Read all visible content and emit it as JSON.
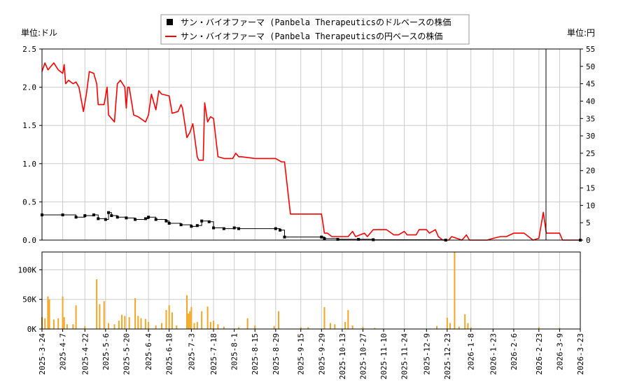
{
  "legend": {
    "usd_label": "サン・バイオファーマ (Panbela Therapeuticsのドルベースの株価",
    "jpy_label": "サン・バイオファーマ (Panbela Therapeuticsの円ベースの株価"
  },
  "axes": {
    "left_unit": "単位:ドル",
    "right_unit": "単位:円",
    "left_ticks": [
      "0.0",
      "0.5",
      "1.0",
      "1.5",
      "2.0",
      "2.5"
    ],
    "right_ticks": [
      "0",
      "5",
      "10",
      "15",
      "20",
      "25",
      "30",
      "35",
      "40",
      "45",
      "50",
      "55"
    ],
    "volume_ticks": [
      "0K",
      "50K",
      "100K"
    ],
    "x_ticks": [
      "2025-3-24",
      "2025-4-7",
      "2025-4-22",
      "2025-5-6",
      "2025-5-20",
      "2025-6-4",
      "2025-6-18",
      "2025-7-3",
      "2025-7-18",
      "2025-8-1",
      "2025-8-15",
      "2025-8-29",
      "2025-9-15",
      "2025-9-29",
      "2025-10-13",
      "2025-10-27",
      "2025-11-10",
      "2025-11-24",
      "2025-12-9",
      "2025-12-23",
      "2026-1-8",
      "2026-1-23",
      "2026-2-6",
      "2026-2-23",
      "2026-3-9",
      "2026-3-23"
    ]
  },
  "chart_data": {
    "type": "line",
    "colors": {
      "usd": "#000000",
      "jpy": "#ff0000",
      "volume": "#f5a623",
      "grid": "#cccccc"
    },
    "ylim_usd": [
      0,
      2.5
    ],
    "ylim_jpy": [
      0,
      55
    ],
    "ylim_volume": [
      0,
      130000
    ],
    "x_range": [
      "2025-03-24",
      "2026-03-23"
    ],
    "grid": true,
    "legend_position": "top-center",
    "series": [
      {
        "name": "サン・バイオファーマ (Panbela Therapeuticsの円ベースの株価",
        "axis": "right",
        "points": [
          [
            "2025-03-24",
            48.5
          ],
          [
            "2025-03-26",
            51
          ],
          [
            "2025-03-28",
            49
          ],
          [
            "2025-04-01",
            51
          ],
          [
            "2025-04-04",
            49
          ],
          [
            "2025-04-07",
            48
          ],
          [
            "2025-04-08",
            50.5
          ],
          [
            "2025-04-09",
            45
          ],
          [
            "2025-04-11",
            46
          ],
          [
            "2025-04-14",
            45
          ],
          [
            "2025-04-16",
            45.5
          ],
          [
            "2025-04-18",
            44
          ],
          [
            "2025-04-21",
            37
          ],
          [
            "2025-04-23",
            42
          ],
          [
            "2025-04-25",
            48.5
          ],
          [
            "2025-04-28",
            48
          ],
          [
            "2025-04-30",
            45
          ],
          [
            "2025-05-01",
            39
          ],
          [
            "2025-05-05",
            39
          ],
          [
            "2025-05-07",
            44
          ],
          [
            "2025-05-08",
            36
          ],
          [
            "2025-05-12",
            34
          ],
          [
            "2025-05-14",
            45
          ],
          [
            "2025-05-16",
            46
          ],
          [
            "2025-05-19",
            44
          ],
          [
            "2025-05-20",
            38
          ],
          [
            "2025-05-21",
            44
          ],
          [
            "2025-05-22",
            44
          ],
          [
            "2025-05-25",
            36
          ],
          [
            "2025-05-28",
            35.5
          ],
          [
            "2025-06-02",
            34
          ],
          [
            "2025-06-04",
            36
          ],
          [
            "2025-06-06",
            42
          ],
          [
            "2025-06-09",
            37.5
          ],
          [
            "2025-06-11",
            43
          ],
          [
            "2025-06-13",
            42
          ],
          [
            "2025-06-18",
            41.5
          ],
          [
            "2025-06-20",
            36.5
          ],
          [
            "2025-06-24",
            37
          ],
          [
            "2025-06-26",
            39
          ],
          [
            "2025-06-27",
            38
          ],
          [
            "2025-06-30",
            29.5
          ],
          [
            "2025-07-02",
            31
          ],
          [
            "2025-07-04",
            33.5
          ],
          [
            "2025-07-07",
            24
          ],
          [
            "2025-07-08",
            23
          ],
          [
            "2025-07-11",
            23
          ],
          [
            "2025-07-12",
            39.5
          ],
          [
            "2025-07-14",
            34
          ],
          [
            "2025-07-16",
            35.5
          ],
          [
            "2025-07-18",
            35
          ],
          [
            "2025-07-21",
            24
          ],
          [
            "2025-07-25",
            23.5
          ],
          [
            "2025-07-31",
            23.5
          ],
          [
            "2025-08-02",
            25
          ],
          [
            "2025-08-04",
            24
          ],
          [
            "2025-08-06",
            24
          ],
          [
            "2025-08-15",
            23.5
          ],
          [
            "2025-08-29",
            23.5
          ],
          [
            "2025-09-02",
            22.5
          ],
          [
            "2025-09-04",
            22.5
          ],
          [
            "2025-09-08",
            7.5
          ],
          [
            "2025-09-15",
            7.5
          ],
          [
            "2025-09-17",
            7.5
          ],
          [
            "2025-09-29",
            7.5
          ],
          [
            "2025-10-01",
            2
          ],
          [
            "2025-10-03",
            2
          ],
          [
            "2025-10-06",
            1
          ],
          [
            "2025-10-13",
            1
          ],
          [
            "2025-10-17",
            1
          ],
          [
            "2025-10-20",
            2.5
          ],
          [
            "2025-10-22",
            1
          ],
          [
            "2025-10-28",
            2
          ],
          [
            "2025-10-30",
            1
          ],
          [
            "2025-11-03",
            3
          ],
          [
            "2025-11-10",
            3
          ],
          [
            "2025-11-12",
            3
          ],
          [
            "2025-11-17",
            1.5
          ],
          [
            "2025-11-20",
            1.5
          ],
          [
            "2025-11-24",
            2.5
          ],
          [
            "2025-11-26",
            1.5
          ],
          [
            "2025-12-02",
            1.5
          ],
          [
            "2025-12-04",
            3
          ],
          [
            "2025-12-09",
            3
          ],
          [
            "2025-12-11",
            2
          ],
          [
            "2025-12-15",
            3
          ],
          [
            "2025-12-17",
            1
          ],
          [
            "2025-12-20",
            0
          ],
          [
            "2025-12-24",
            0
          ],
          [
            "2025-12-26",
            1
          ],
          [
            "2026-01-02",
            0
          ],
          [
            "2026-01-05",
            1.5
          ],
          [
            "2026-01-07",
            0
          ],
          [
            "2026-01-08",
            0
          ],
          [
            "2026-01-19",
            0
          ],
          [
            "2026-01-23",
            0.5
          ],
          [
            "2026-01-28",
            1
          ],
          [
            "2026-02-01",
            1
          ],
          [
            "2026-02-06",
            2
          ],
          [
            "2026-02-13",
            2
          ],
          [
            "2026-02-16",
            1
          ],
          [
            "2026-02-19",
            0
          ],
          [
            "2026-02-23",
            0.5
          ],
          [
            "2026-02-26",
            8
          ],
          [
            "2026-02-28",
            2
          ],
          [
            "2026-03-09",
            2
          ],
          [
            "2026-03-11",
            0
          ],
          [
            "2026-03-23",
            0
          ]
        ]
      },
      {
        "name": "サン・バイオファーマ (Panbela Therapeuticsのドルベースの株価",
        "axis": "left",
        "points": [
          [
            "2025-03-24",
            0.33
          ],
          [
            "2025-04-07",
            0.33
          ],
          [
            "2025-04-16",
            0.3
          ],
          [
            "2025-04-22",
            0.32
          ],
          [
            "2025-04-28",
            0.33
          ],
          [
            "2025-05-01",
            0.28
          ],
          [
            "2025-05-06",
            0.27
          ],
          [
            "2025-05-08",
            0.36
          ],
          [
            "2025-05-10",
            0.32
          ],
          [
            "2025-05-14",
            0.3
          ],
          [
            "2025-05-20",
            0.29
          ],
          [
            "2025-05-26",
            0.27
          ],
          [
            "2025-06-02",
            0.28
          ],
          [
            "2025-06-04",
            0.3
          ],
          [
            "2025-06-09",
            0.27
          ],
          [
            "2025-06-16",
            0.25
          ],
          [
            "2025-06-18",
            0.22
          ],
          [
            "2025-06-26",
            0.2
          ],
          [
            "2025-07-03",
            0.18
          ],
          [
            "2025-07-07",
            0.19
          ],
          [
            "2025-07-10",
            0.25
          ],
          [
            "2025-07-15",
            0.24
          ],
          [
            "2025-07-18",
            0.16
          ],
          [
            "2025-07-25",
            0.15
          ],
          [
            "2025-08-01",
            0.16
          ],
          [
            "2025-08-04",
            0.15
          ],
          [
            "2025-08-29",
            0.15
          ],
          [
            "2025-09-01",
            0.13
          ],
          [
            "2025-09-04",
            0.04
          ],
          [
            "2025-09-29",
            0.04
          ],
          [
            "2025-10-01",
            0.02
          ],
          [
            "2025-10-10",
            0.01
          ],
          [
            "2025-10-24",
            0.01
          ],
          [
            "2025-11-03",
            0.005
          ],
          [
            "2025-12-22",
            0.0
          ],
          [
            "2026-03-23",
            0.0
          ]
        ]
      },
      {
        "name": "",
        "axis": "volume",
        "values_by_date": [
          [
            "2025-03-24",
            20000
          ],
          [
            "2025-03-26",
            18000
          ],
          [
            "2025-03-28",
            55000
          ],
          [
            "2025-03-29",
            50000
          ],
          [
            "2025-04-01",
            16000
          ],
          [
            "2025-04-04",
            18000
          ],
          [
            "2025-04-07",
            55000
          ],
          [
            "2025-04-08",
            20000
          ],
          [
            "2025-04-10",
            8000
          ],
          [
            "2025-04-14",
            8000
          ],
          [
            "2025-04-16",
            40000
          ],
          [
            "2025-04-22",
            5000
          ],
          [
            "2025-04-30",
            84000
          ],
          [
            "2025-05-02",
            42000
          ],
          [
            "2025-05-05",
            47000
          ],
          [
            "2025-05-08",
            10000
          ],
          [
            "2025-05-12",
            8000
          ],
          [
            "2025-05-15",
            14000
          ],
          [
            "2025-05-17",
            24000
          ],
          [
            "2025-05-19",
            22000
          ],
          [
            "2025-05-22",
            20000
          ],
          [
            "2025-05-26",
            52000
          ],
          [
            "2025-05-28",
            22000
          ],
          [
            "2025-05-30",
            18000
          ],
          [
            "2025-06-02",
            17000
          ],
          [
            "2025-06-04",
            12000
          ],
          [
            "2025-06-09",
            6000
          ],
          [
            "2025-06-13",
            10000
          ],
          [
            "2025-06-16",
            32000
          ],
          [
            "2025-06-18",
            40000
          ],
          [
            "2025-06-20",
            28000
          ],
          [
            "2025-06-23",
            6000
          ],
          [
            "2025-06-30",
            57000
          ],
          [
            "2025-07-01",
            26000
          ],
          [
            "2025-07-02",
            30000
          ],
          [
            "2025-07-03",
            37000
          ],
          [
            "2025-07-05",
            10000
          ],
          [
            "2025-07-07",
            12000
          ],
          [
            "2025-07-10",
            30000
          ],
          [
            "2025-07-14",
            38000
          ],
          [
            "2025-07-16",
            12000
          ],
          [
            "2025-07-18",
            14000
          ],
          [
            "2025-07-21",
            8000
          ],
          [
            "2025-07-25",
            4000
          ],
          [
            "2025-08-04",
            3000
          ],
          [
            "2025-08-10",
            18000
          ],
          [
            "2025-08-15",
            6000
          ],
          [
            "2025-08-28",
            5000
          ],
          [
            "2025-08-31",
            30000
          ],
          [
            "2025-09-15",
            3000
          ],
          [
            "2025-09-20",
            3000
          ],
          [
            "2025-10-01",
            37000
          ],
          [
            "2025-10-05",
            10000
          ],
          [
            "2025-10-08",
            8000
          ],
          [
            "2025-10-15",
            12000
          ],
          [
            "2025-10-17",
            32000
          ],
          [
            "2025-10-20",
            6000
          ],
          [
            "2025-10-27",
            4000
          ],
          [
            "2025-11-04",
            2000
          ],
          [
            "2025-12-16",
            5000
          ],
          [
            "2025-12-23",
            19000
          ],
          [
            "2025-12-25",
            10000
          ],
          [
            "2025-12-28",
            130000
          ],
          [
            "2025-12-31",
            4000
          ],
          [
            "2026-01-04",
            25000
          ],
          [
            "2026-01-06",
            10000
          ],
          [
            "2026-01-08",
            3000
          ],
          [
            "2026-02-23",
            3000
          ],
          [
            "2026-03-09",
            2000
          ]
        ]
      }
    ]
  }
}
